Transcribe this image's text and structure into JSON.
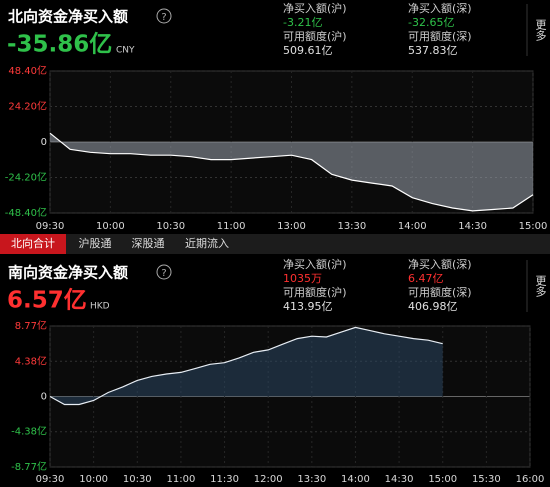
{
  "tabs": [
    "北向合计",
    "沪股通",
    "深股通",
    "近期流入"
  ],
  "panels": [
    {
      "title": "北向资金净买入额",
      "help": "?",
      "total": "-35.86亿",
      "currency": "CNY",
      "more": "更多",
      "stats": [
        {
          "label": "净买入额(沪)",
          "value": "-3.21亿"
        },
        {
          "label": "可用额度(沪)",
          "value": "509.61亿"
        },
        {
          "label": "净买入额(深)",
          "value": "-32.65亿"
        },
        {
          "label": "可用额度(深)",
          "value": "537.83亿"
        }
      ]
    },
    {
      "title": "南向资金净买入额",
      "help": "?",
      "total": "6.57亿",
      "currency": "HKD",
      "more": "更多",
      "stats": [
        {
          "label": "净买入额(沪)",
          "value": "1035万"
        },
        {
          "label": "可用额度(沪)",
          "value": "413.95亿"
        },
        {
          "label": "净买入额(深)",
          "value": "6.47亿"
        },
        {
          "label": "可用额度(深)",
          "value": "406.98亿"
        }
      ]
    }
  ],
  "chart_data": [
    {
      "type": "area",
      "color": "#9aa3ad",
      "line_color": "#ffffff",
      "x": [
        "09:30",
        "09:40",
        "09:50",
        "10:00",
        "10:10",
        "10:20",
        "10:30",
        "10:40",
        "10:50",
        "11:00",
        "11:10",
        "11:20",
        "13:00",
        "13:10",
        "13:20",
        "13:30",
        "13:40",
        "13:50",
        "14:00",
        "14:10",
        "14:20",
        "14:30",
        "14:40",
        "14:50",
        "15:00"
      ],
      "values": [
        6,
        -5,
        -7,
        -8,
        -8,
        -9,
        -9,
        -10,
        -12,
        -12,
        -11,
        -10,
        -9,
        -12,
        -22,
        -26,
        -28,
        -30,
        -38,
        -42,
        -45,
        -47,
        -46,
        -45,
        -36
      ],
      "ylim": [
        -48.4,
        48.4
      ],
      "yticks": [
        {
          "value": 48.4,
          "label": "48.40亿"
        },
        {
          "value": 24.2,
          "label": "24.20亿"
        },
        0,
        {
          "value": -24.2,
          "label": "-24.20亿"
        },
        {
          "value": -48.4,
          "label": "-48.40亿"
        }
      ],
      "xticks": [
        "09:30",
        "10:00",
        "10:30",
        "11:00",
        "13:00",
        "13:30",
        "14:00",
        "14:30",
        "15:00"
      ]
    },
    {
      "type": "area",
      "color": "#2c4762",
      "line_color": "#e8eef5",
      "x": [
        "09:30",
        "09:40",
        "09:50",
        "10:00",
        "10:10",
        "10:20",
        "10:30",
        "10:40",
        "10:50",
        "11:00",
        "11:10",
        "11:20",
        "11:30",
        "11:40",
        "11:50",
        "12:00",
        "13:10",
        "13:20",
        "13:30",
        "13:40",
        "13:50",
        "14:00",
        "14:10",
        "14:20",
        "14:30",
        "14:40",
        "14:50",
        "15:00"
      ],
      "values": [
        0,
        -1,
        -1,
        -0.5,
        0.5,
        1.2,
        2,
        2.5,
        2.8,
        3,
        3.5,
        4,
        4.2,
        4.8,
        5.5,
        5.8,
        6.5,
        7.2,
        7.5,
        7.4,
        8,
        8.6,
        8.2,
        7.8,
        7.5,
        7.2,
        7,
        6.57
      ],
      "ylim": [
        -8.77,
        8.77
      ],
      "yticks": [
        {
          "value": 8.77,
          "label": "8.77亿"
        },
        {
          "value": 4.38,
          "label": "4.38亿"
        },
        0,
        {
          "value": -4.38,
          "label": "-4.38亿"
        },
        {
          "value": -8.77,
          "label": "-8.77亿"
        }
      ],
      "xticks": [
        "09:30",
        "10:00",
        "10:30",
        "11:00",
        "11:30",
        "12:00",
        "13:30",
        "14:00",
        "14:30",
        "15:00",
        "15:30",
        "16:00"
      ]
    }
  ]
}
